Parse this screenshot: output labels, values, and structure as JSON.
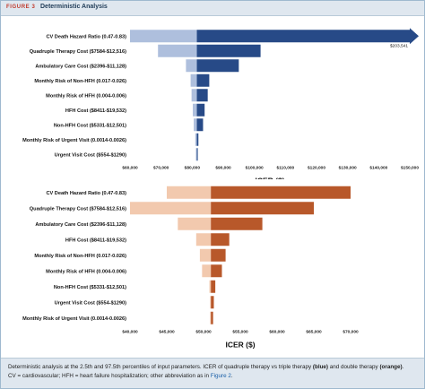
{
  "figure": {
    "number": "FIGURE 3",
    "title": "Deterministic Analysis"
  },
  "caption": {
    "text1": "Deterministic analysis at the 2.5th and 97.5th percentiles of input parameters. ICER of quadruple therapy vs triple therapy ",
    "blue": "(blue)",
    "text2": " and double therapy ",
    "orange": "(orange)",
    "text3": ".",
    "text4": "CV = cardiovascular; HFH = heart failure hospitalization; other abbreviation as in ",
    "link": "Figure 2",
    "text5": "."
  },
  "chart_data": [
    {
      "type": "bar",
      "orientation": "horizontal-tornado",
      "xlabel": "ICER ($)",
      "xlim": [
        60000,
        150000
      ],
      "xticks": [
        60000,
        70000,
        80000,
        90000,
        100000,
        110000,
        120000,
        130000,
        140000,
        150000
      ],
      "xtick_labels": [
        "$60,000",
        "$70,000",
        "$80,000",
        "$90,000",
        "$100,000",
        "$110,000",
        "$120,000",
        "$130,000",
        "$140,000",
        "$150,000"
      ],
      "base": 81500,
      "colors": {
        "low": "#aebfdd",
        "high": "#274a87"
      },
      "annotations": [
        {
          "text": "$203,541",
          "row": 0
        }
      ],
      "categories": [
        "CV Death Hazard Ratio (0.47-0.83)",
        "Quadruple Therapy Cost ($7584-$12,516)",
        "Ambulatory Care Cost ($2396-$11,128)",
        "Monthly Risk of Non-HFH (0.017-0.026)",
        "Monthly Risk of HFH (0.004-0.006)",
        "HFH Cost ($8411-$19,532)",
        "Non-HFH Cost ($5331-$12,501)",
        "Monthly Risk of Urgent Visit (0.0014-0.0026)",
        "Urgent Visit Cost ($554-$1290)"
      ],
      "low": [
        60000,
        69000,
        78000,
        79500,
        79800,
        80200,
        80500,
        81000,
        81200
      ],
      "high": [
        203541,
        102000,
        95000,
        85500,
        85000,
        84000,
        83500,
        82000,
        81800
      ]
    },
    {
      "type": "bar",
      "orientation": "horizontal-tornado",
      "xlabel": "ICER ($)",
      "xlim": [
        40000,
        70000
      ],
      "xticks": [
        40000,
        45000,
        50000,
        55000,
        60000,
        65000,
        70000
      ],
      "xtick_labels": [
        "$40,000",
        "$45,000",
        "$50,000",
        "$55,000",
        "$60,000",
        "$65,000",
        "$70,000"
      ],
      "base": 51000,
      "colors": {
        "low": "#f2c9ae",
        "high": "#b8582a"
      },
      "categories": [
        "CV Death Hazard Ratio (0.47-0.83)",
        "Quadruple Therapy Cost ($7584-$12,516)",
        "Ambulatory Care Cost ($2396-$11,128)",
        "HFH Cost ($8411-$19,532)",
        "Monthly Risk of Non-HFH (0.017-0.026)",
        "Monthly Risk of HFH (0.004-0.006)",
        "Non-HFH Cost ($5331-$12,501)",
        "Urgent Visit Cost ($554-$1290)",
        "Monthly Risk of Urgent Visit (0.0014-0.0026)"
      ],
      "low": [
        45000,
        40000,
        46500,
        49000,
        49500,
        49800,
        50800,
        50900,
        50900
      ],
      "high": [
        70000,
        65000,
        58000,
        53500,
        53000,
        52500,
        51600,
        51400,
        51300
      ]
    }
  ]
}
